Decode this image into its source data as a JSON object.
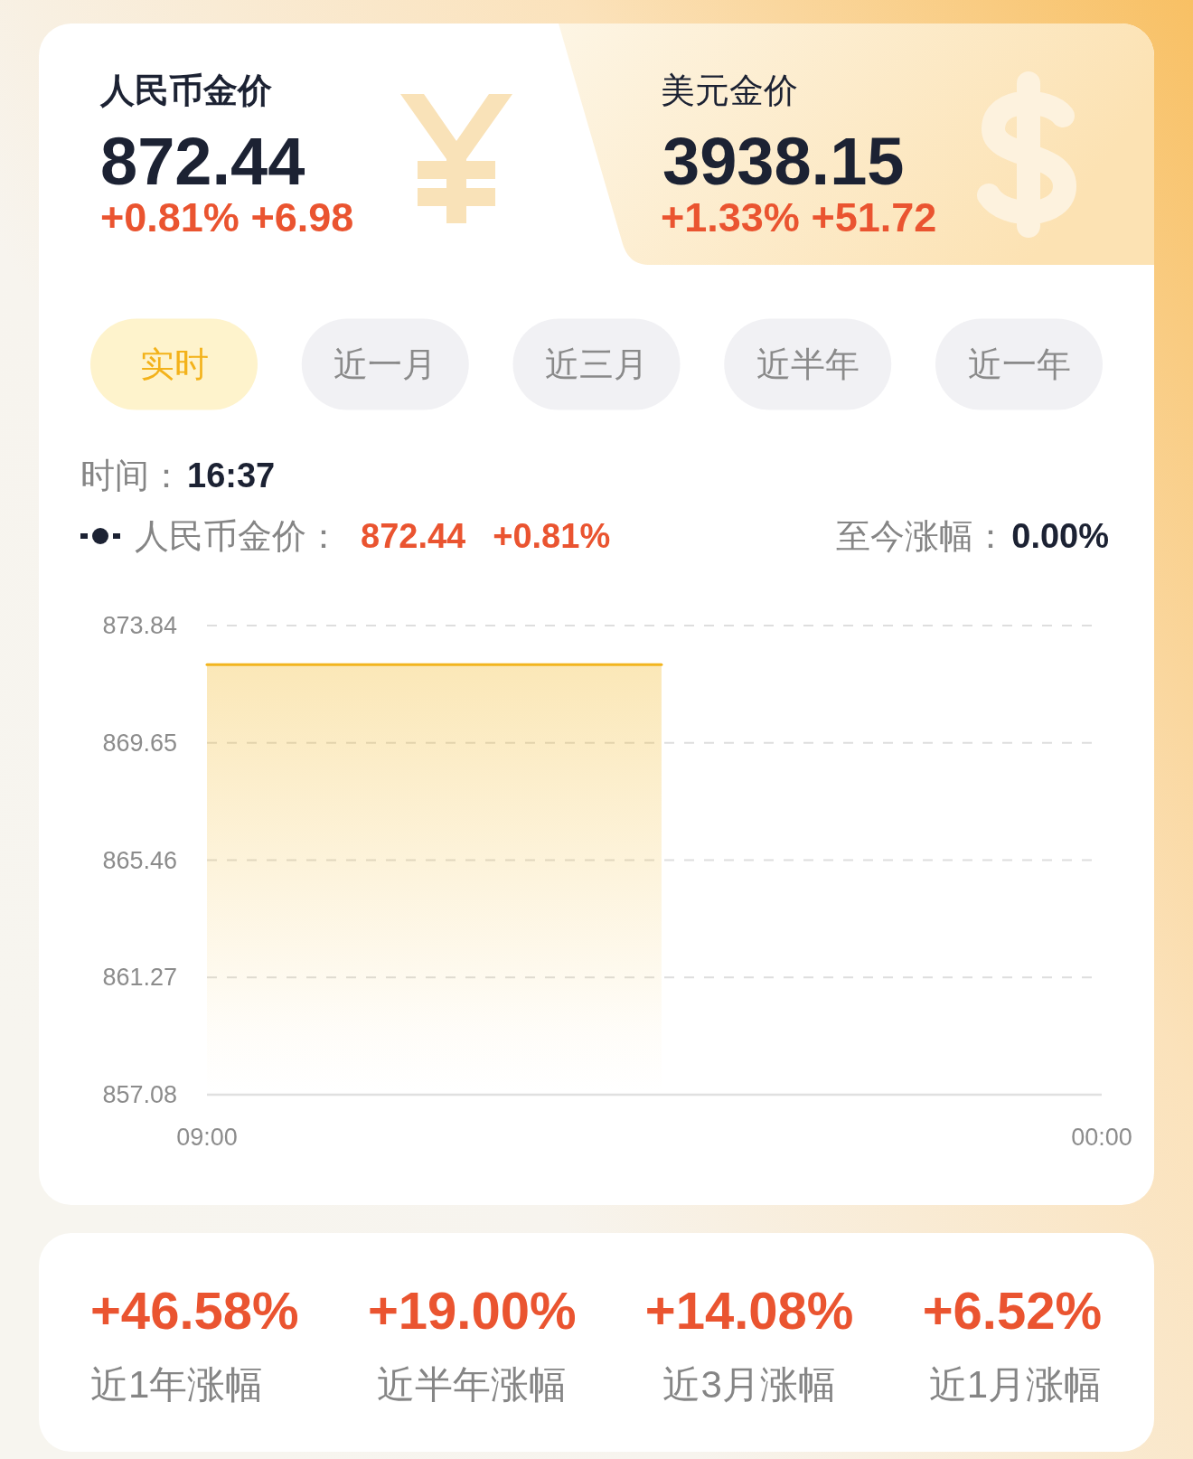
{
  "chart_data": [
    {
      "type": "other",
      "annotations": [
        "人民币金价",
        "872.44",
        "+0.81% +6.98",
        "美元金价",
        "3938.15",
        "+1.33% +51.72"
      ]
    },
    {
      "type": "area",
      "annotations": [
        "实时",
        "近一月",
        "近三月",
        "近半年",
        "近一年",
        "时间：",
        "16:37",
        "人民币金价：",
        "872.44",
        "+0.81%",
        "至今涨幅：",
        "0.00%"
      ],
      "x": [
        9,
        16.62
      ],
      "series": [
        {
          "color": "#f2b51f",
          "values": [
            872.44,
            872.44
          ]
        }
      ],
      "xlim": [
        9,
        24
      ],
      "xticks": [
        {
          "value": 9,
          "label": "09:00"
        },
        {
          "value": 24,
          "label": "00:00"
        }
      ],
      "ylim": [
        857.08,
        873.84
      ],
      "yticks": [
        857.08,
        861.27,
        865.46,
        869.65,
        873.84
      ],
      "grid": "y"
    },
    {
      "type": "other",
      "annotations": [
        "+46.58%",
        "近1年涨幅",
        "+19.00%",
        "近半年涨幅",
        "+14.08%",
        "近3月涨幅",
        "+6.52%",
        "近1月涨幅"
      ]
    }
  ]
}
